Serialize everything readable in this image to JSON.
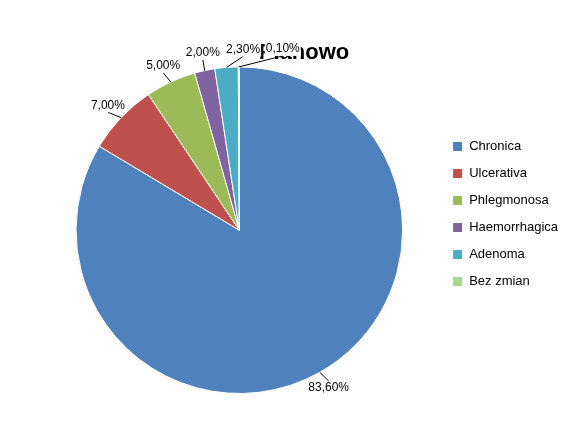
{
  "chart_data": {
    "type": "pie",
    "title": "Planowo",
    "categories": [
      "Chronica",
      "Ulcerativa",
      "Phlegmonosa",
      "Haemorrhagica",
      "Adenoma",
      "Bez zmian"
    ],
    "values": [
      83.6,
      7,
      5,
      2,
      2.3,
      0.1
    ],
    "value_labels": [
      "83,60%",
      "7,00%",
      "5,00%",
      "2,00%",
      "2,30%",
      "0,10%"
    ],
    "colors": [
      "#4f81bd",
      "#c0504d",
      "#9bbb59",
      "#8064a2",
      "#4bacc6",
      "#a9d88f"
    ],
    "legend": "right",
    "data_labels": true
  }
}
